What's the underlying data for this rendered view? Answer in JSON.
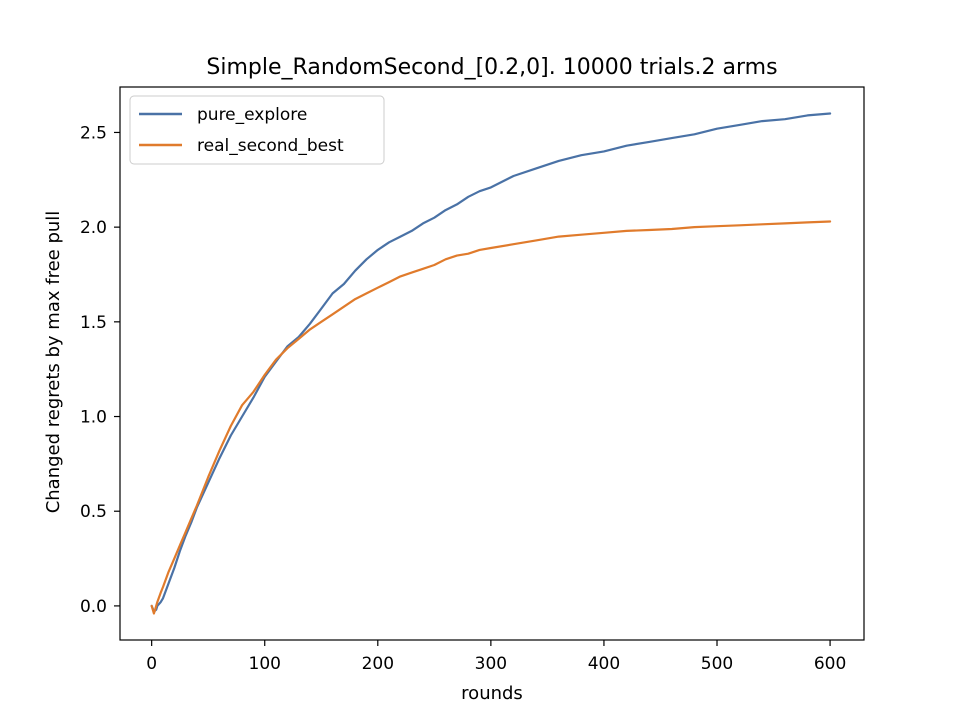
{
  "chart_data": {
    "type": "line",
    "title": "Simple_RandomSecond_[0.2,0]. 10000 trials.2 arms",
    "xlabel": "rounds",
    "ylabel": "Changed regrets by max free pull",
    "xlim": [
      -28,
      630
    ],
    "ylim": [
      -0.18,
      2.74
    ],
    "x_ticks": [
      0,
      100,
      200,
      300,
      400,
      500,
      600
    ],
    "x_tick_labels": [
      "0",
      "100",
      "200",
      "300",
      "400",
      "500",
      "600"
    ],
    "y_ticks": [
      0.0,
      0.5,
      1.0,
      1.5,
      2.0,
      2.5
    ],
    "y_tick_labels": [
      "0.0",
      "0.5",
      "1.0",
      "1.5",
      "2.0",
      "2.5"
    ],
    "grid": false,
    "legend_position": "upper-left",
    "series": [
      {
        "name": "pure_explore",
        "color": "#4a72a6",
        "x": [
          0,
          2,
          4,
          5,
          8,
          10,
          15,
          20,
          25,
          30,
          35,
          40,
          50,
          60,
          70,
          80,
          90,
          100,
          110,
          120,
          130,
          140,
          150,
          160,
          170,
          180,
          190,
          200,
          210,
          220,
          230,
          240,
          250,
          260,
          270,
          280,
          290,
          300,
          320,
          340,
          360,
          380,
          400,
          420,
          440,
          460,
          480,
          500,
          520,
          540,
          560,
          580,
          600
        ],
        "y": [
          0.0,
          -0.03,
          -0.02,
          0.0,
          0.02,
          0.04,
          0.12,
          0.2,
          0.29,
          0.37,
          0.44,
          0.52,
          0.65,
          0.78,
          0.9,
          1.0,
          1.1,
          1.21,
          1.29,
          1.37,
          1.42,
          1.49,
          1.57,
          1.65,
          1.7,
          1.77,
          1.83,
          1.88,
          1.92,
          1.95,
          1.98,
          2.02,
          2.05,
          2.09,
          2.12,
          2.16,
          2.19,
          2.21,
          2.27,
          2.31,
          2.35,
          2.38,
          2.4,
          2.43,
          2.45,
          2.47,
          2.49,
          2.52,
          2.54,
          2.56,
          2.57,
          2.59,
          2.6
        ]
      },
      {
        "name": "real_second_best",
        "color": "#e07b2c",
        "x": [
          0,
          2,
          3,
          5,
          8,
          10,
          15,
          20,
          25,
          30,
          35,
          40,
          50,
          60,
          70,
          80,
          90,
          100,
          110,
          120,
          130,
          140,
          150,
          160,
          170,
          180,
          190,
          200,
          210,
          220,
          230,
          240,
          250,
          260,
          270,
          280,
          290,
          300,
          320,
          340,
          360,
          380,
          400,
          420,
          440,
          460,
          480,
          500,
          520,
          540,
          560,
          580,
          600
        ],
        "y": [
          0.0,
          -0.04,
          -0.02,
          0.02,
          0.07,
          0.1,
          0.18,
          0.25,
          0.32,
          0.39,
          0.46,
          0.53,
          0.68,
          0.82,
          0.95,
          1.06,
          1.13,
          1.22,
          1.3,
          1.36,
          1.41,
          1.46,
          1.5,
          1.54,
          1.58,
          1.62,
          1.65,
          1.68,
          1.71,
          1.74,
          1.76,
          1.78,
          1.8,
          1.83,
          1.85,
          1.86,
          1.88,
          1.89,
          1.91,
          1.93,
          1.95,
          1.96,
          1.97,
          1.98,
          1.985,
          1.99,
          2.0,
          2.005,
          2.01,
          2.015,
          2.02,
          2.025,
          2.03
        ]
      }
    ]
  }
}
